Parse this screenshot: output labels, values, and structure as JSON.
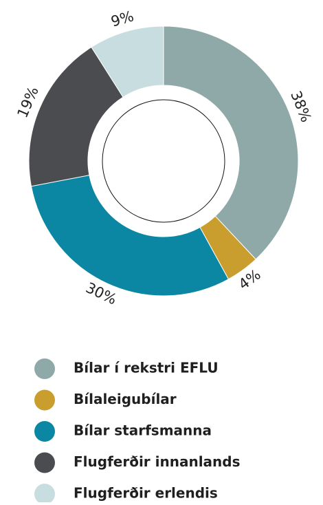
{
  "chart_data": {
    "type": "donut",
    "categories": [
      "Bílar í rekstri EFLU",
      "Bílaleigubílar",
      "Bílar starfsmanna",
      "Flugferðir innanlands",
      "Flugferðir erlendis"
    ],
    "values": [
      38,
      4,
      30,
      19,
      9
    ],
    "value_labels": [
      "38%",
      "4%",
      "30%",
      "19%",
      "9%"
    ],
    "colors": [
      "#8fa8a8",
      "#c99e2e",
      "#0b87a3",
      "#4a4c4f",
      "#c7dde0"
    ]
  }
}
